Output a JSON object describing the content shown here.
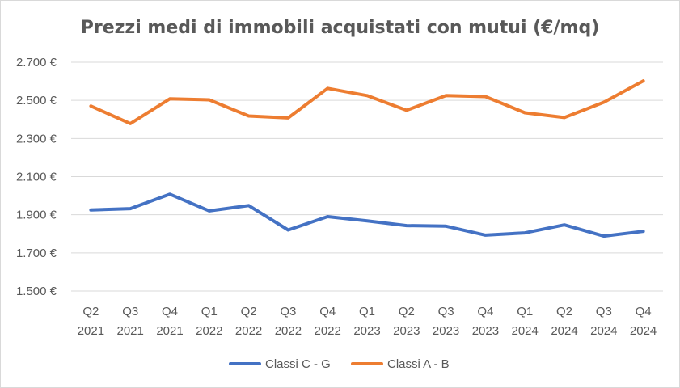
{
  "chart_data": {
    "type": "line",
    "title": "Prezzi medi di immobili acquistati con mutui (€/mq)",
    "xlabel": "",
    "ylabel": "",
    "ylim": [
      1500,
      2700
    ],
    "yticks": [
      "1.500 €",
      "1.700 €",
      "1.900 €",
      "2.100 €",
      "2.300 €",
      "2.500 €",
      "2.700 €"
    ],
    "ytick_values": [
      1500,
      1700,
      1900,
      2100,
      2300,
      2500,
      2700
    ],
    "categories": [
      [
        "Q2",
        "2021"
      ],
      [
        "Q3",
        "2021"
      ],
      [
        "Q4",
        "2021"
      ],
      [
        "Q1",
        "2022"
      ],
      [
        "Q2",
        "2022"
      ],
      [
        "Q3",
        "2022"
      ],
      [
        "Q4",
        "2022"
      ],
      [
        "Q1",
        "2023"
      ],
      [
        "Q2",
        "2023"
      ],
      [
        "Q3",
        "2023"
      ],
      [
        "Q4",
        "2023"
      ],
      [
        "Q1",
        "2024"
      ],
      [
        "Q2",
        "2024"
      ],
      [
        "Q3",
        "2024"
      ],
      [
        "Q4",
        "2024"
      ]
    ],
    "grid": "horizontal",
    "legend_position": "bottom",
    "series": [
      {
        "name": "Classi C - G",
        "color": "#4472c4",
        "values": [
          1925,
          1932,
          2008,
          1920,
          1948,
          1820,
          1890,
          1868,
          1843,
          1840,
          1793,
          1805,
          1847,
          1788,
          1813
        ]
      },
      {
        "name": "Classi A - B",
        "color": "#ed7d31",
        "values": [
          2470,
          2378,
          2508,
          2503,
          2418,
          2408,
          2563,
          2525,
          2448,
          2525,
          2520,
          2435,
          2410,
          2490,
          2602
        ]
      }
    ]
  }
}
